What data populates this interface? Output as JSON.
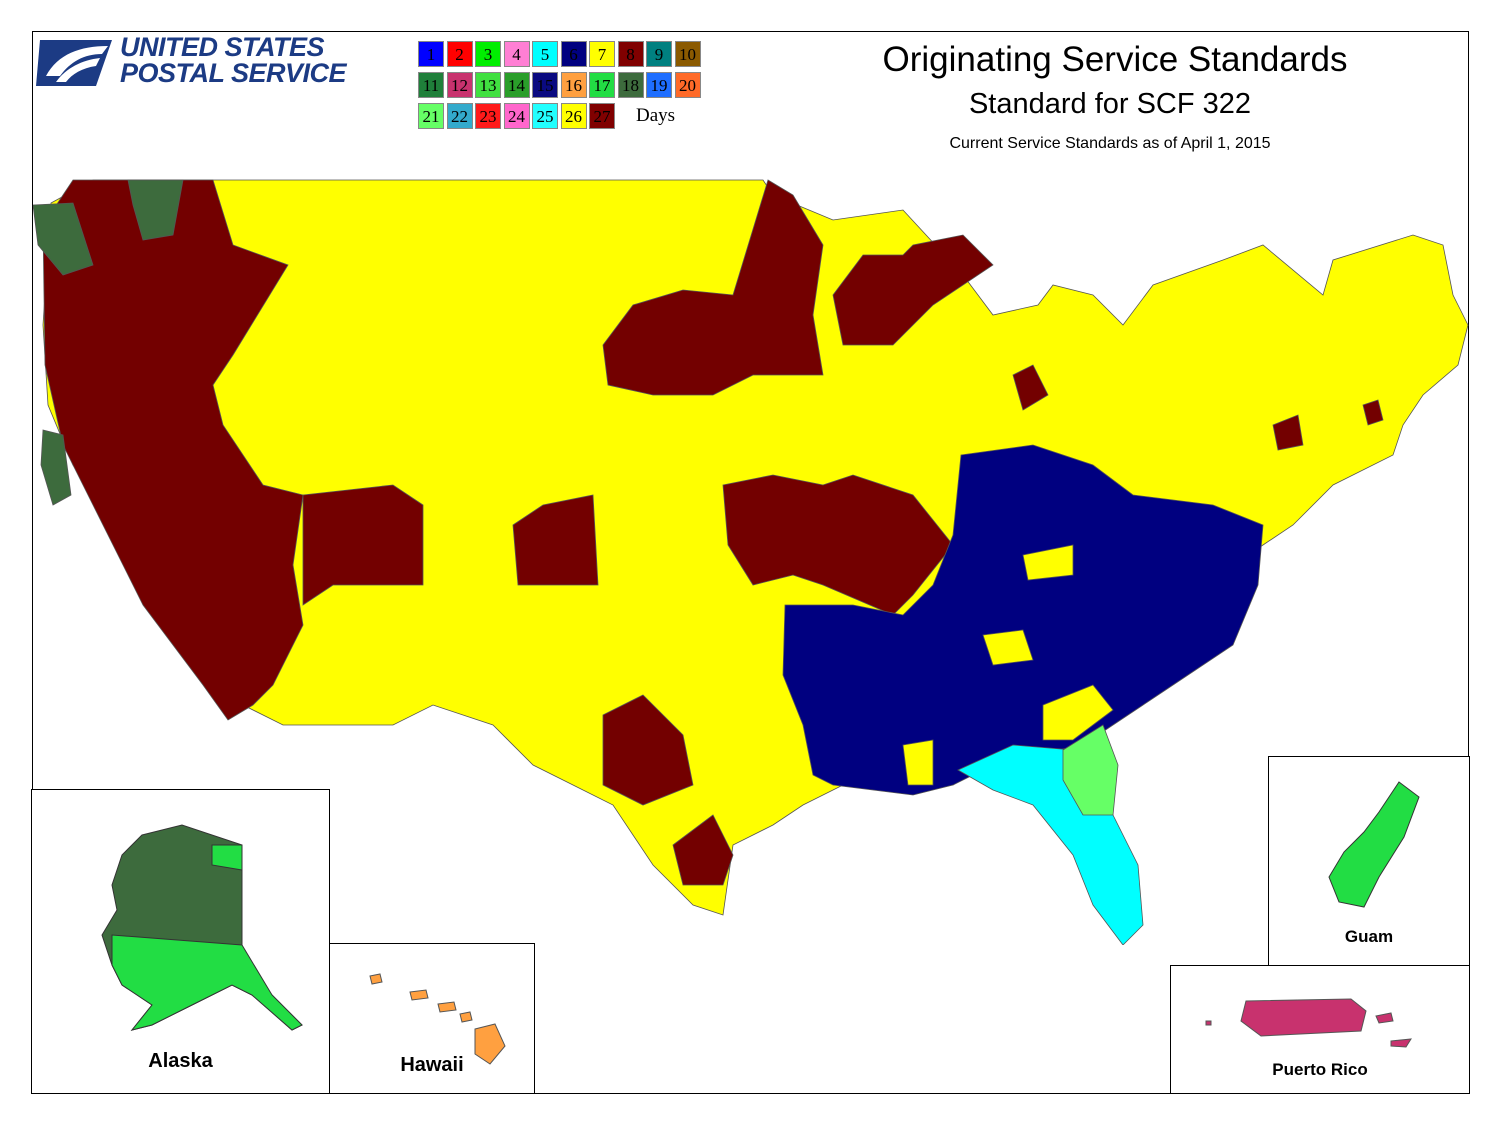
{
  "logo": {
    "line1": "UNITED STATES",
    "line2": "POSTAL SERVICE",
    "brand_color": "#1c3b84",
    "icon": "eagle-icon"
  },
  "title": "Originating Service Standards",
  "subtitle": "Standard for SCF 322",
  "as_of": "Current Service Standards as of April 1, 2015",
  "legend": {
    "unit_label": "Days",
    "items": [
      {
        "label": "1",
        "color": "#0000ff"
      },
      {
        "label": "2",
        "color": "#ff0000"
      },
      {
        "label": "3",
        "color": "#00ee00"
      },
      {
        "label": "4",
        "color": "#ff7fd4"
      },
      {
        "label": "5",
        "color": "#00ffff"
      },
      {
        "label": "6",
        "color": "#000080"
      },
      {
        "label": "7",
        "color": "#ffff00"
      },
      {
        "label": "8",
        "color": "#800000"
      },
      {
        "label": "9",
        "color": "#008080"
      },
      {
        "label": "10",
        "color": "#8b5a00"
      },
      {
        "label": "11",
        "color": "#1f7f3a"
      },
      {
        "label": "12",
        "color": "#c8326e"
      },
      {
        "label": "13",
        "color": "#40e040"
      },
      {
        "label": "14",
        "color": "#2a9e2a"
      },
      {
        "label": "15",
        "color": "#0a0a80"
      },
      {
        "label": "16",
        "color": "#ffa040"
      },
      {
        "label": "17",
        "color": "#22dd44"
      },
      {
        "label": "18",
        "color": "#3d6b3d"
      },
      {
        "label": "19",
        "color": "#1e6eff"
      },
      {
        "label": "20",
        "color": "#ff6a28"
      },
      {
        "label": "21",
        "color": "#66ff66"
      },
      {
        "label": "22",
        "color": "#33aacc"
      },
      {
        "label": "23",
        "color": "#ff1a1a"
      },
      {
        "label": "24",
        "color": "#ff66cc"
      },
      {
        "label": "25",
        "color": "#22ffff"
      },
      {
        "label": "26",
        "color": "#ffff00"
      },
      {
        "label": "27",
        "color": "#800000"
      }
    ]
  },
  "region_colors": {
    "days_27": "#730000",
    "days_26": "#ffff00",
    "days_15": "#000080",
    "days_25": "#00ffff",
    "days_21": "#66ff66",
    "days_18": "#3d6b3d",
    "days_17": "#22dd44",
    "days_16": "#ffa040",
    "days_12": "#c8326e"
  },
  "insets": {
    "alaska": "Alaska",
    "hawaii": "Hawaii",
    "guam": "Guam",
    "puerto_rico": "Puerto Rico"
  }
}
